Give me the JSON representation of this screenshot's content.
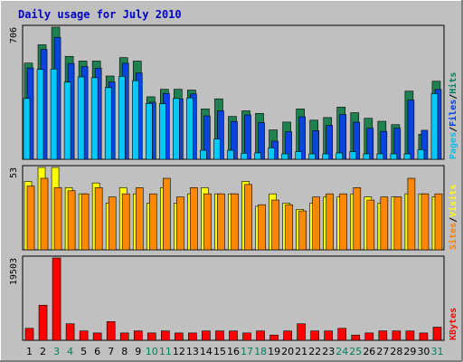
{
  "chart_data": [
    {
      "type": "bar",
      "title": "Daily usage for July 2010",
      "y_max_label": "706",
      "ylim": [
        0,
        706
      ],
      "categories": [
        "1",
        "2",
        "3",
        "4",
        "5",
        "6",
        "7",
        "8",
        "9",
        "10",
        "11",
        "12",
        "13",
        "14",
        "15",
        "16",
        "17",
        "18",
        "19",
        "20",
        "21",
        "22",
        "23",
        "24",
        "25",
        "26",
        "27",
        "28",
        "29",
        "30",
        "31"
      ],
      "weekend_days": [
        "3",
        "4",
        "10",
        "11",
        "17",
        "18",
        "24",
        "25",
        "31"
      ],
      "legend": [
        {
          "label": "Pages",
          "color": "#00C0E8"
        },
        {
          "label": "/",
          "color": "#000000"
        },
        {
          "label": "Files",
          "color": "#0040E8"
        },
        {
          "label": "/",
          "color": "#000000"
        },
        {
          "label": "Hits",
          "color": "#00805C"
        }
      ],
      "series": [
        {
          "name": "Hits",
          "color": "#1F8050",
          "values": [
            514,
            612,
            706,
            550,
            525,
            525,
            445,
            543,
            525,
            334,
            374,
            374,
            370,
            269,
            323,
            229,
            259,
            245,
            157,
            199,
            269,
            209,
            223,
            279,
            249,
            219,
            203,
            185,
            364,
            134,
            417
          ]
        },
        {
          "name": "Files",
          "color": "#0A44E0",
          "values": [
            488,
            587,
            652,
            512,
            495,
            487,
            413,
            513,
            461,
            305,
            352,
            323,
            349,
            232,
            259,
            202,
            237,
            196,
            97,
            147,
            227,
            153,
            181,
            239,
            198,
            166,
            149,
            166,
            316,
            155,
            373
          ]
        },
        {
          "name": "Pages",
          "color": "#00C8F8",
          "values": [
            325,
            480,
            482,
            412,
            440,
            436,
            383,
            443,
            420,
            298,
            297,
            325,
            328,
            48,
            108,
            48,
            32,
            34,
            61,
            29,
            41,
            29,
            29,
            34,
            41,
            29,
            29,
            29,
            29,
            51,
            351
          ]
        }
      ]
    },
    {
      "type": "bar",
      "y_max_label": "53",
      "ylim": [
        0,
        53
      ],
      "legend": [
        {
          "label": "Sites",
          "color": "#FF8000"
        },
        {
          "label": "/",
          "color": "#000000"
        },
        {
          "label": "Visits",
          "color": "#FFFF00"
        }
      ],
      "series": [
        {
          "name": "Visits",
          "color": "#FFFF00",
          "values": [
            44,
            53,
            53,
            40,
            36,
            43,
            30,
            40,
            36,
            30,
            40,
            30,
            36,
            40,
            36,
            36,
            44,
            28,
            36,
            30,
            26,
            30,
            34,
            34,
            36,
            34,
            30,
            34,
            36,
            36,
            34
          ]
        },
        {
          "name": "Sites",
          "color": "#FF8800",
          "values": [
            41,
            46,
            40,
            38,
            36,
            40,
            34,
            36,
            40,
            36,
            46,
            34,
            40,
            36,
            36,
            36,
            42,
            29,
            32,
            29,
            25,
            34,
            36,
            36,
            40,
            32,
            34,
            34,
            46,
            36,
            36
          ]
        }
      ]
    },
    {
      "type": "bar",
      "y_max_label": "19503",
      "ylim": [
        0,
        19503
      ],
      "legend": [
        {
          "label": "KBytes",
          "color": "#FF0000"
        }
      ],
      "series": [
        {
          "name": "KBytes",
          "color": "#FF0000",
          "values": [
            2836,
            8306,
            19503,
            3910,
            2214,
            1734,
            4425,
            1734,
            2214,
            1734,
            2214,
            1734,
            1734,
            2214,
            2214,
            2214,
            1734,
            2214,
            1240,
            2214,
            3910,
            2214,
            2214,
            2836,
            1240,
            1734,
            2214,
            2214,
            2214,
            1734,
            3110
          ]
        }
      ]
    }
  ]
}
